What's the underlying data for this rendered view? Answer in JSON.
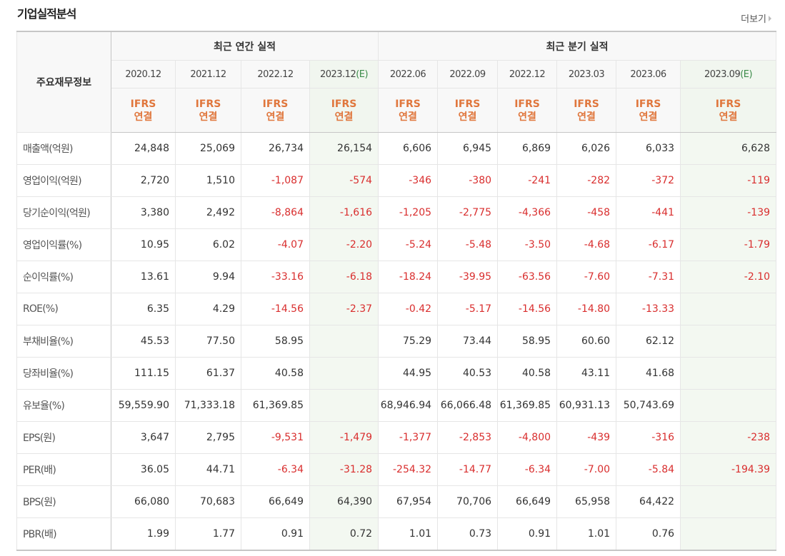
{
  "header": {
    "title": "기업실적분석",
    "more_label": "더보기"
  },
  "table": {
    "label_header": "주요재무정보",
    "groups": {
      "annual": "최근 연간 실적",
      "quarterly": "최근 분기 실적"
    },
    "columns": [
      {
        "date": "2020.12",
        "est": "",
        "standard_1": "IFRS",
        "standard_2": "연결"
      },
      {
        "date": "2021.12",
        "est": "",
        "standard_1": "IFRS",
        "standard_2": "연결"
      },
      {
        "date": "2022.12",
        "est": "",
        "standard_1": "IFRS",
        "standard_2": "연결"
      },
      {
        "date": "2023.12",
        "est": "(E)",
        "standard_1": "IFRS",
        "standard_2": "연결"
      },
      {
        "date": "2022.06",
        "est": "",
        "standard_1": "IFRS",
        "standard_2": "연결"
      },
      {
        "date": "2022.09",
        "est": "",
        "standard_1": "IFRS",
        "standard_2": "연결"
      },
      {
        "date": "2022.12",
        "est": "",
        "standard_1": "IFRS",
        "standard_2": "연결"
      },
      {
        "date": "2023.03",
        "est": "",
        "standard_1": "IFRS",
        "standard_2": "연결"
      },
      {
        "date": "2023.06",
        "est": "",
        "standard_1": "IFRS",
        "standard_2": "연결"
      },
      {
        "date": "2023.09",
        "est": "(E)",
        "standard_1": "IFRS",
        "standard_2": "연결"
      }
    ],
    "rows": [
      {
        "label": "매출액(억원)",
        "values": [
          "24,848",
          "25,069",
          "26,734",
          "26,154",
          "6,606",
          "6,945",
          "6,869",
          "6,026",
          "6,033",
          "6,628"
        ]
      },
      {
        "label": "영업이익(억원)",
        "values": [
          "2,720",
          "1,510",
          "-1,087",
          "-574",
          "-346",
          "-380",
          "-241",
          "-282",
          "-372",
          "-119"
        ]
      },
      {
        "label": "당기순이익(억원)",
        "values": [
          "3,380",
          "2,492",
          "-8,864",
          "-1,616",
          "-1,205",
          "-2,775",
          "-4,366",
          "-458",
          "-441",
          "-139"
        ]
      },
      {
        "label": "영업이익률(%)",
        "values": [
          "10.95",
          "6.02",
          "-4.07",
          "-2.20",
          "-5.24",
          "-5.48",
          "-3.50",
          "-4.68",
          "-6.17",
          "-1.79"
        ]
      },
      {
        "label": "순이익률(%)",
        "values": [
          "13.61",
          "9.94",
          "-33.16",
          "-6.18",
          "-18.24",
          "-39.95",
          "-63.56",
          "-7.60",
          "-7.31",
          "-2.10"
        ]
      },
      {
        "label": "ROE(%)",
        "values": [
          "6.35",
          "4.29",
          "-14.56",
          "-2.37",
          "-0.42",
          "-5.17",
          "-14.56",
          "-14.80",
          "-13.33",
          ""
        ]
      },
      {
        "label": "부채비율(%)",
        "values": [
          "45.53",
          "77.50",
          "58.95",
          "",
          "75.29",
          "73.44",
          "58.95",
          "60.60",
          "62.12",
          ""
        ]
      },
      {
        "label": "당좌비율(%)",
        "values": [
          "111.15",
          "61.37",
          "40.58",
          "",
          "44.95",
          "40.53",
          "40.58",
          "43.11",
          "41.68",
          ""
        ]
      },
      {
        "label": "유보율(%)",
        "values": [
          "59,559.90",
          "71,333.18",
          "61,369.85",
          "",
          "68,946.94",
          "66,066.48",
          "61,369.85",
          "60,931.13",
          "50,743.69",
          ""
        ]
      },
      {
        "label": "EPS(원)",
        "values": [
          "3,647",
          "2,795",
          "-9,531",
          "-1,479",
          "-1,377",
          "-2,853",
          "-4,800",
          "-439",
          "-316",
          "-238"
        ]
      },
      {
        "label": "PER(배)",
        "values": [
          "36.05",
          "44.71",
          "-6.34",
          "-31.28",
          "-254.32",
          "-14.77",
          "-6.34",
          "-7.00",
          "-5.84",
          "-194.39"
        ]
      },
      {
        "label": "BPS(원)",
        "values": [
          "66,080",
          "70,683",
          "66,649",
          "64,390",
          "67,954",
          "70,706",
          "66,649",
          "65,958",
          "64,422",
          ""
        ]
      },
      {
        "label": "PBR(배)",
        "values": [
          "1.99",
          "1.77",
          "0.91",
          "0.72",
          "1.01",
          "0.73",
          "0.91",
          "1.01",
          "0.76",
          ""
        ]
      }
    ]
  },
  "colors": {
    "negative": "#d92e2e",
    "ifrs": "#e0763c",
    "estimate_bg": "#f3f8f1",
    "estimate_mark": "#3c8c4a"
  }
}
